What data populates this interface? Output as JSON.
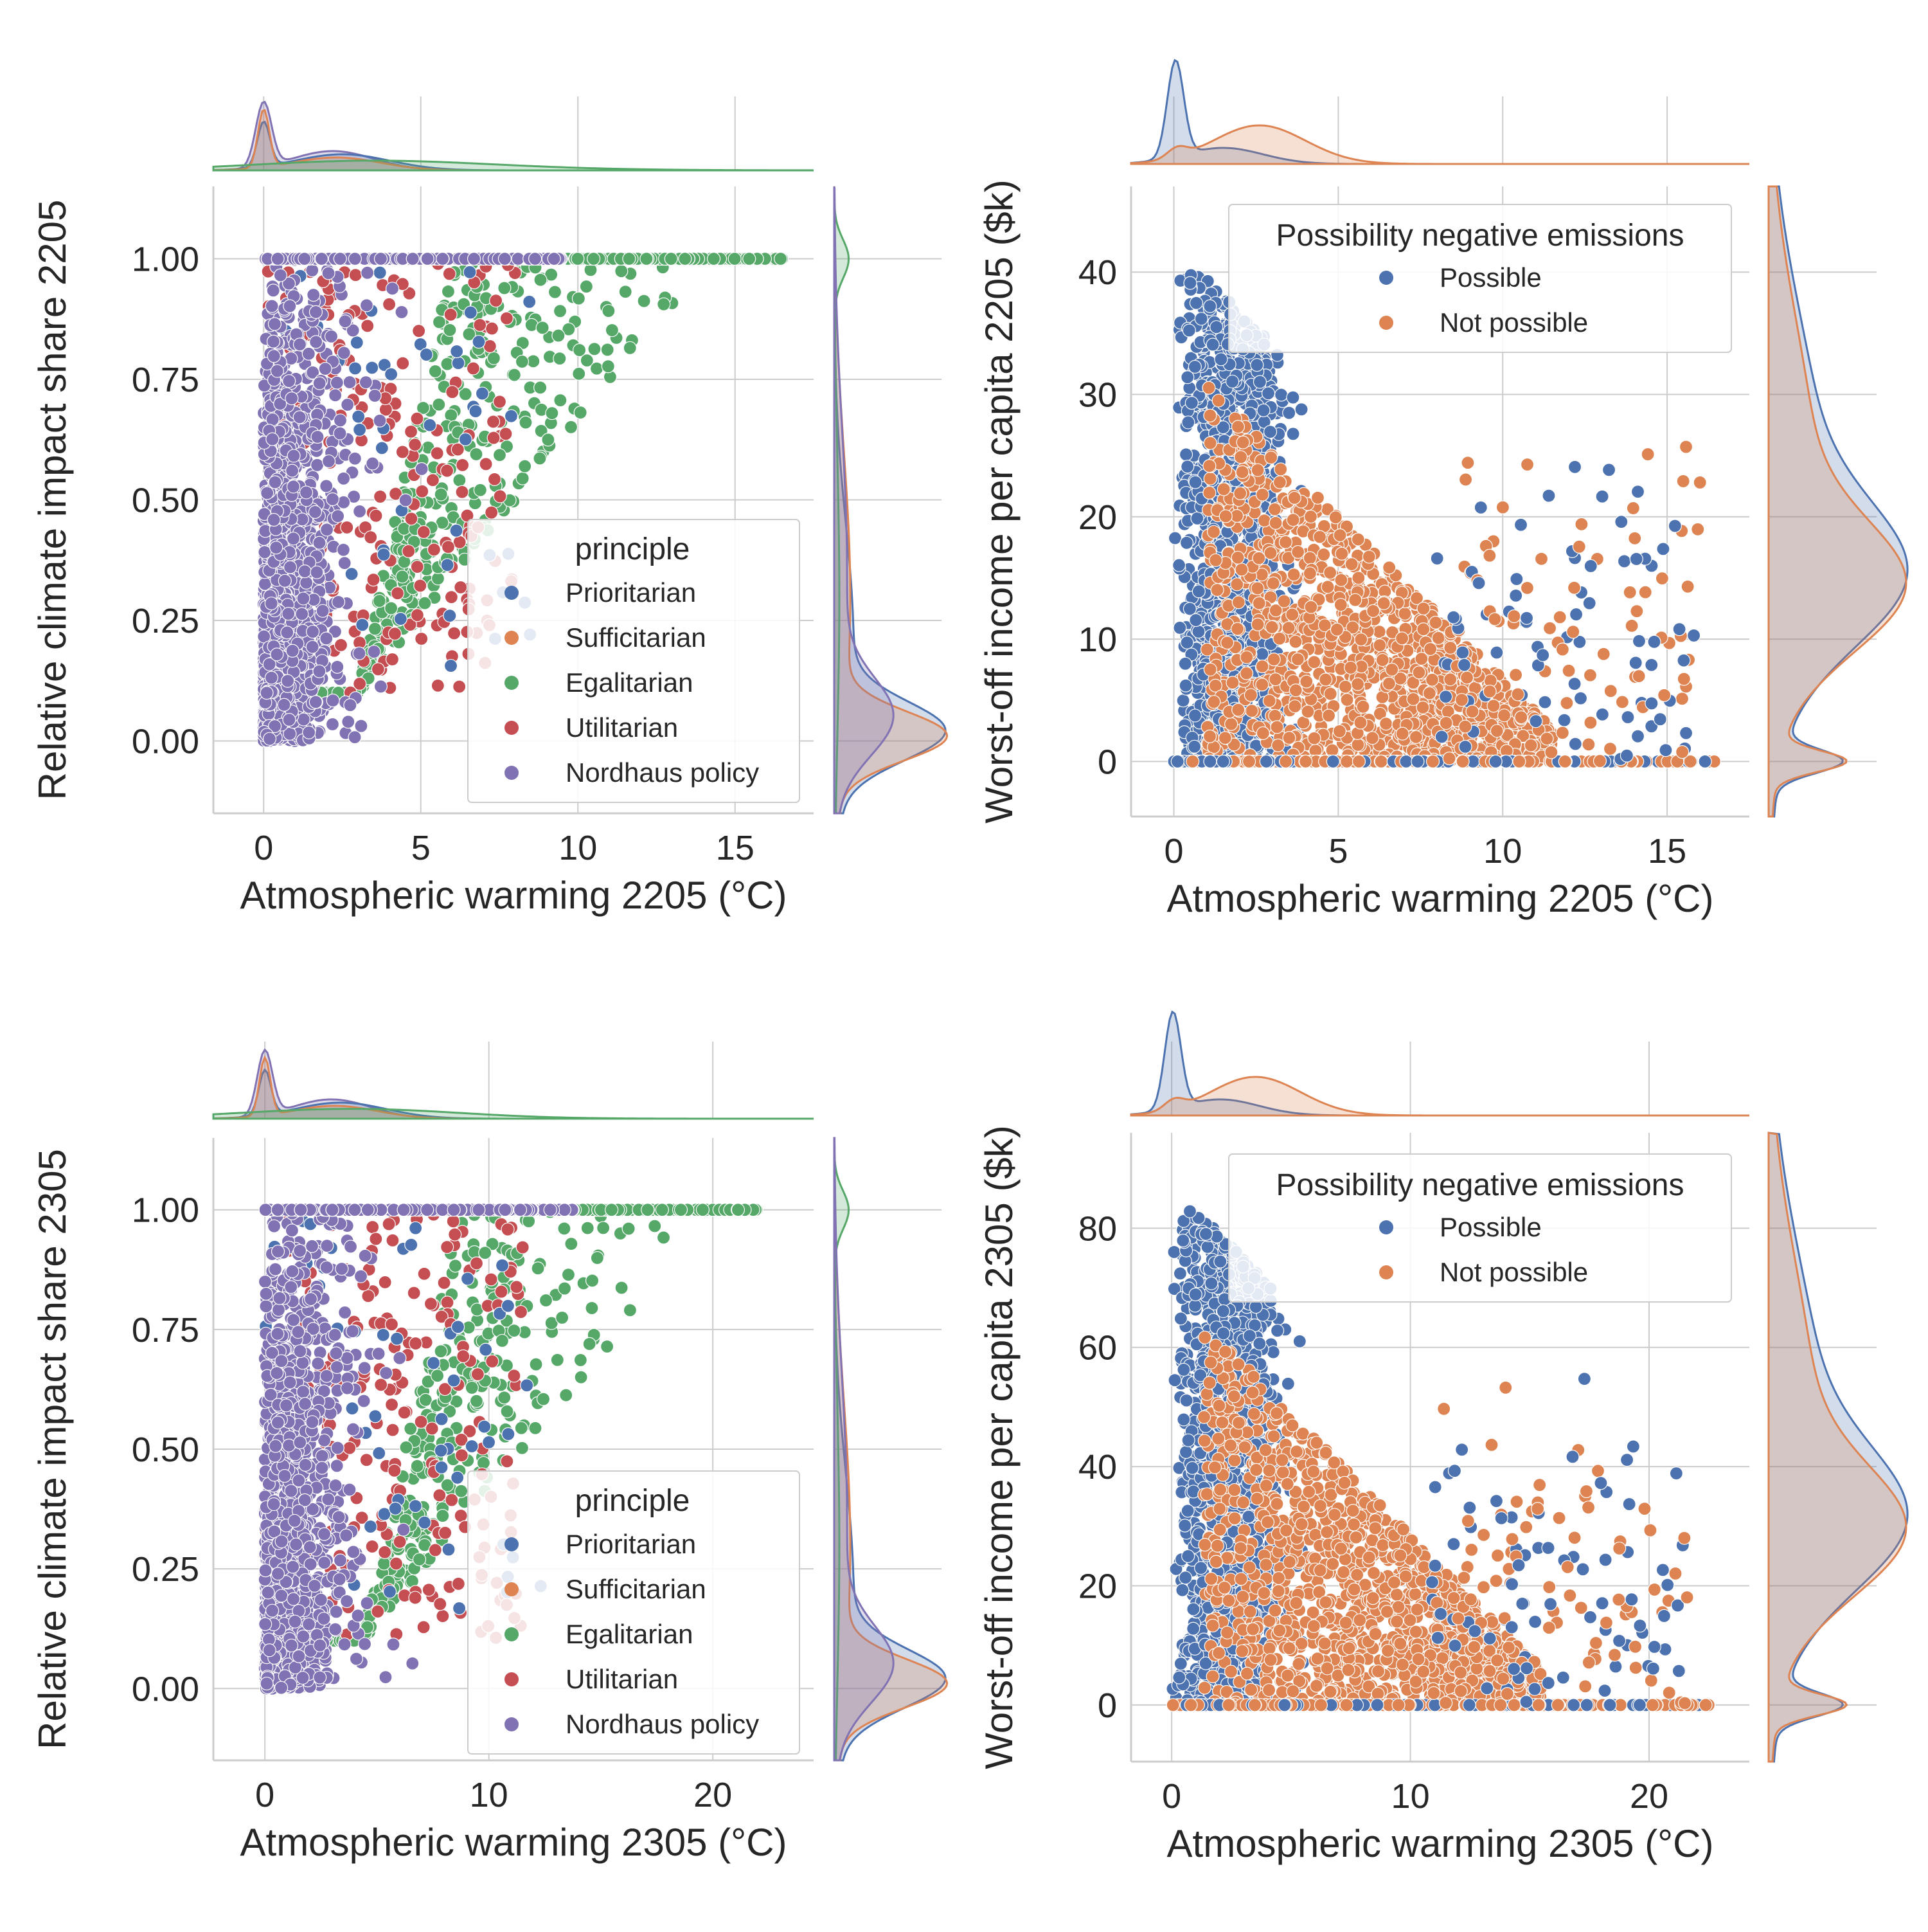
{
  "chart_data": [
    {
      "type": "scatter",
      "xlabel": "Atmospheric warming 2205 (°C)",
      "ylabel": "Relative climate impact share 2205",
      "xlim": [
        -1.6,
        17.5
      ],
      "ylim": [
        -0.15,
        1.15
      ],
      "xticks": [
        0,
        5,
        10,
        15
      ],
      "yticks": [
        "0.00",
        "0.25",
        "0.50",
        "0.75",
        "1.00"
      ],
      "legend_title": "principle",
      "legend_position": "lower-right",
      "grid": true,
      "marginals": "kde",
      "series": [
        {
          "name": "Prioritarian",
          "color": "#4c72b0"
        },
        {
          "name": "Sufficitarian",
          "color": "#dd8452"
        },
        {
          "name": "Egalitarian",
          "color": "#55a868"
        },
        {
          "name": "Utilitarian",
          "color": "#c44e52"
        },
        {
          "name": "Nordhaus policy",
          "color": "#8172b3"
        }
      ]
    },
    {
      "type": "scatter",
      "xlabel": "Atmospheric warming 2205 (°C)",
      "ylabel": "Worst-off income per capita 2205 ($k)",
      "xlim": [
        -1.3,
        17.5
      ],
      "ylim": [
        -4.5,
        47
      ],
      "xticks": [
        0,
        5,
        10,
        15
      ],
      "yticks": [
        0,
        10,
        20,
        30,
        40
      ],
      "legend_title": "Possibility negative emissions",
      "legend_position": "upper-right",
      "grid": true,
      "marginals": "kde",
      "series": [
        {
          "name": "Possible",
          "color": "#4c72b0"
        },
        {
          "name": "Not possible",
          "color": "#dd8452"
        }
      ]
    },
    {
      "type": "scatter",
      "xlabel": "Atmospheric warming 2305 (°C)",
      "ylabel": "Relative climate impact share 2305",
      "xlim": [
        -2.3,
        24.5
      ],
      "ylim": [
        -0.15,
        1.15
      ],
      "xticks": [
        0,
        10,
        20
      ],
      "yticks": [
        "0.00",
        "0.25",
        "0.50",
        "0.75",
        "1.00"
      ],
      "legend_title": "principle",
      "legend_position": "lower-right",
      "grid": true,
      "marginals": "kde",
      "series": [
        {
          "name": "Prioritarian",
          "color": "#4c72b0"
        },
        {
          "name": "Sufficitarian",
          "color": "#dd8452"
        },
        {
          "name": "Egalitarian",
          "color": "#55a868"
        },
        {
          "name": "Utilitarian",
          "color": "#c44e52"
        },
        {
          "name": "Nordhaus policy",
          "color": "#8172b3"
        }
      ]
    },
    {
      "type": "scatter",
      "xlabel": "Atmospheric warming 2305 (°C)",
      "ylabel": "Worst-off income per capita 2305 ($k)",
      "xlim": [
        -1.7,
        24.2
      ],
      "ylim": [
        -9.5,
        96
      ],
      "xticks": [
        0,
        10,
        20
      ],
      "yticks": [
        0,
        20,
        40,
        60,
        80
      ],
      "legend_title": "Possibility negative emissions",
      "legend_position": "upper-right",
      "grid": true,
      "marginals": "kde",
      "series": [
        {
          "name": "Possible",
          "color": "#4c72b0"
        },
        {
          "name": "Not possible",
          "color": "#dd8452"
        }
      ]
    }
  ]
}
